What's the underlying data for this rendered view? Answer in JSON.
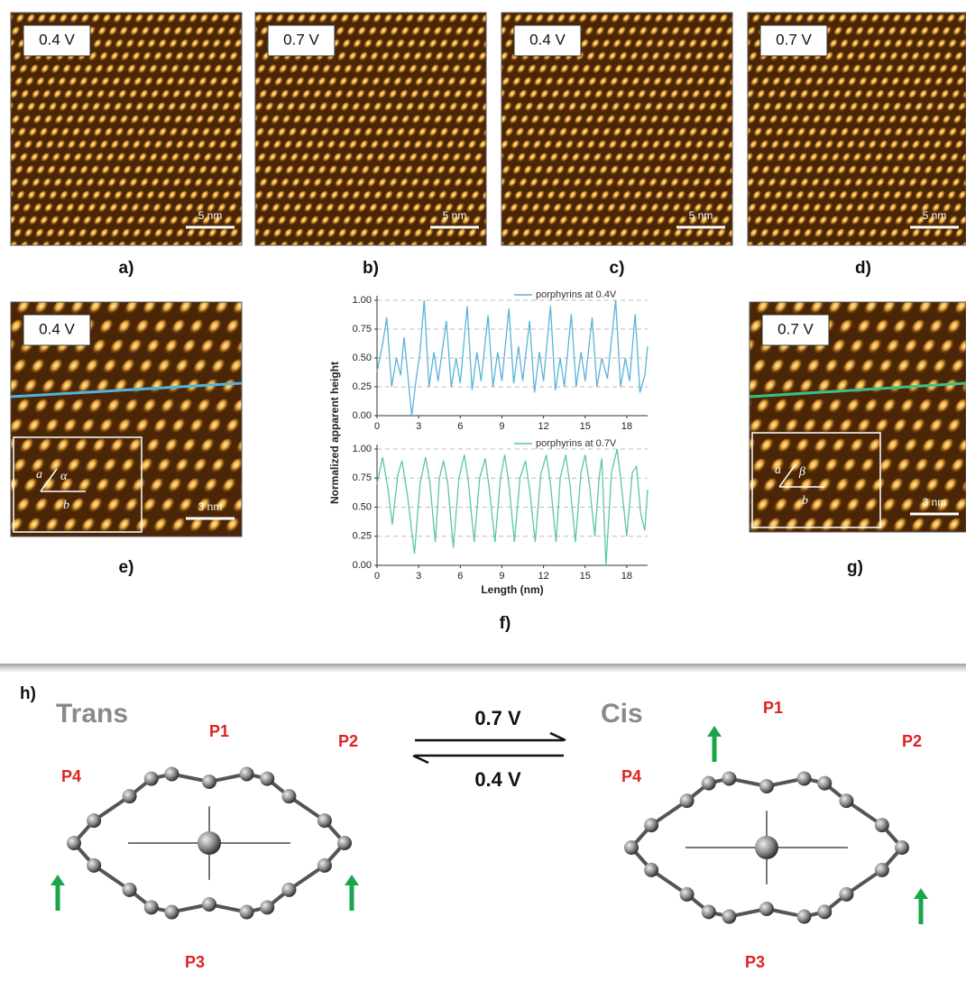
{
  "panels": [
    {
      "label": "a)",
      "bias": "0.4 V",
      "scale": "5 nm"
    },
    {
      "label": "b)",
      "bias": "0.7 V",
      "scale": "5 nm"
    },
    {
      "label": "c)",
      "bias": "0.4 V",
      "scale": "5 nm"
    },
    {
      "label": "d)",
      "bias": "0.7 V",
      "scale": "5 nm"
    }
  ],
  "panel_e": {
    "label": "e)",
    "bias": "0.4 V",
    "scale": "3 nm",
    "inset": [
      "a",
      "α",
      "b"
    ]
  },
  "panel_g": {
    "label": "g)",
    "bias": "0.7 V",
    "scale": "3 nm",
    "inset": [
      "a",
      "β",
      "b"
    ]
  },
  "panel_f": {
    "label": "f)"
  },
  "chart_data": [
    {
      "type": "line",
      "ylabel": "Normalized apparent  height",
      "legend": "upper right",
      "grid": true,
      "xlim": [
        0,
        19.5
      ],
      "ylim": [
        0,
        1
      ],
      "xticks": [
        0,
        3,
        6,
        9,
        12,
        15,
        18
      ],
      "yticks": [
        {
          "value": 0,
          "label": "0.00"
        },
        {
          "value": 0.25,
          "label": "0.25"
        },
        {
          "value": 0.5,
          "label": "0.50"
        },
        {
          "value": 0.75,
          "label": "0.75"
        },
        {
          "value": 1,
          "label": "1.00"
        }
      ],
      "x": [
        0,
        0.4,
        0.7,
        1.05,
        1.4,
        1.7,
        1.95,
        2.3,
        2.5,
        2.8,
        3.1,
        3.4,
        3.75,
        4.1,
        4.4,
        5.0,
        5.35,
        5.7,
        6.0,
        6.5,
        6.85,
        7.2,
        7.5,
        8.0,
        8.35,
        8.7,
        9.0,
        9.5,
        9.85,
        10.2,
        10.5,
        11.0,
        11.35,
        11.7,
        12.0,
        12.5,
        12.85,
        13.2,
        13.5,
        14.0,
        14.35,
        14.7,
        15.0,
        15.5,
        15.85,
        16.2,
        16.6,
        17.2,
        17.55,
        17.9,
        18.2,
        18.6,
        18.95,
        19.3,
        19.5
      ],
      "series": [
        {
          "name": "porphyrins at 0.4V",
          "color": "#5ab4d6",
          "values": [
            0.38,
            0.62,
            0.85,
            0.25,
            0.5,
            0.35,
            0.68,
            0.25,
            0.0,
            0.3,
            0.55,
            1.0,
            0.25,
            0.55,
            0.3,
            0.82,
            0.25,
            0.5,
            0.28,
            0.95,
            0.22,
            0.55,
            0.3,
            0.87,
            0.25,
            0.55,
            0.3,
            0.93,
            0.28,
            0.6,
            0.3,
            0.82,
            0.2,
            0.55,
            0.3,
            0.95,
            0.22,
            0.5,
            0.25,
            0.88,
            0.25,
            0.55,
            0.3,
            0.85,
            0.25,
            0.5,
            0.32,
            1.0,
            0.25,
            0.5,
            0.3,
            0.88,
            0.2,
            0.35,
            0.6
          ]
        }
      ]
    },
    {
      "type": "line",
      "xlabel": "Length (nm)",
      "legend": "upper right",
      "grid": true,
      "xlim": [
        0,
        19.5
      ],
      "ylim": [
        0,
        1
      ],
      "xticks": [
        0,
        3,
        6,
        9,
        12,
        15,
        18
      ],
      "yticks": [
        {
          "value": 0,
          "label": "0.00"
        },
        {
          "value": 0.25,
          "label": "0.25"
        },
        {
          "value": 0.5,
          "label": "0.50"
        },
        {
          "value": 0.75,
          "label": "0.75"
        },
        {
          "value": 1,
          "label": "1.00"
        }
      ],
      "x": [
        0,
        0.4,
        0.8,
        1.1,
        1.5,
        1.8,
        2.2,
        2.7,
        3.1,
        3.5,
        3.8,
        4.2,
        4.5,
        4.8,
        5.1,
        5.5,
        5.9,
        6.3,
        6.6,
        7.0,
        7.4,
        7.8,
        8.1,
        8.5,
        8.9,
        9.2,
        9.5,
        9.9,
        10.3,
        10.7,
        11.0,
        11.4,
        11.8,
        12.2,
        12.5,
        12.9,
        13.2,
        13.6,
        13.9,
        14.3,
        14.7,
        15.0,
        15.3,
        15.7,
        16.0,
        16.2,
        16.5,
        16.9,
        17.3,
        17.6,
        18.0,
        18.4,
        18.7,
        19.0,
        19.3,
        19.5
      ],
      "series": [
        {
          "name": "porphyrins at 0.7V",
          "color": "#5cc7a0",
          "values": [
            0.7,
            0.93,
            0.65,
            0.35,
            0.78,
            0.9,
            0.6,
            0.1,
            0.7,
            0.93,
            0.72,
            0.2,
            0.75,
            0.9,
            0.7,
            0.15,
            0.75,
            0.95,
            0.7,
            0.2,
            0.75,
            0.92,
            0.65,
            0.2,
            0.75,
            0.95,
            0.7,
            0.2,
            0.75,
            0.9,
            0.65,
            0.2,
            0.78,
            0.95,
            0.7,
            0.2,
            0.75,
            0.95,
            0.7,
            0.2,
            0.8,
            0.95,
            0.7,
            0.25,
            0.75,
            0.92,
            0.0,
            0.8,
            1.0,
            0.7,
            0.25,
            0.8,
            0.85,
            0.45,
            0.3,
            0.65
          ]
        }
      ]
    }
  ],
  "panel_h": {
    "label": "h)",
    "trans": {
      "title": "Trans",
      "labels": [
        "P1",
        "P2",
        "P3",
        "P4"
      ]
    },
    "cis": {
      "title": "Cis",
      "labels": [
        "P1",
        "P2",
        "P3",
        "P4"
      ]
    },
    "forward": "0.7 V",
    "backward": "0.4 V"
  }
}
